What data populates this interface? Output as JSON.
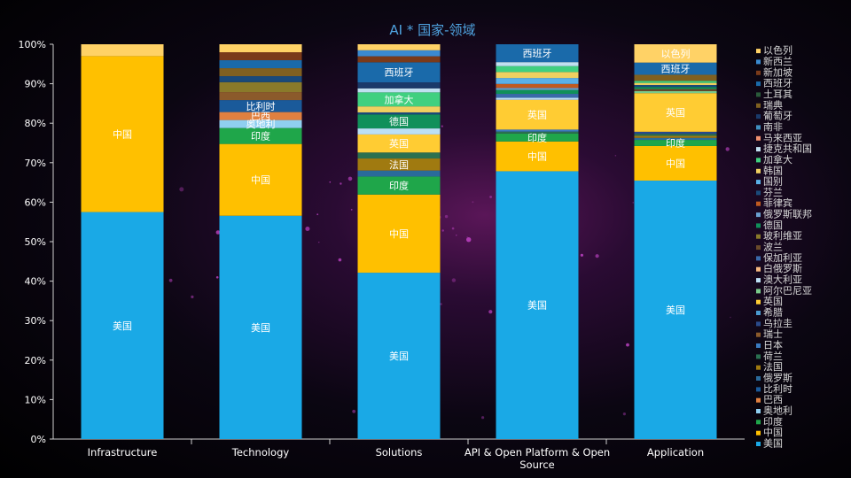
{
  "chart_data": {
    "type": "bar",
    "stacked": true,
    "percent": true,
    "title": "AI * 国家-领域",
    "xlabel": "",
    "ylabel": "",
    "ylim": [
      0,
      100
    ],
    "yticks": [
      "0%",
      "10%",
      "20%",
      "30%",
      "40%",
      "50%",
      "60%",
      "70%",
      "80%",
      "90%",
      "100%"
    ],
    "categories": [
      "Infrastructure",
      "Technology",
      "Solutions",
      "API & Open Platform & Open Source",
      "Application"
    ],
    "category_lines": [
      [
        "Infrastructure"
      ],
      [
        "Technology"
      ],
      [
        "Solutions"
      ],
      [
        "API & Open Platform & Open",
        "Source"
      ],
      [
        "Application"
      ]
    ],
    "legend_position": "right",
    "series": [
      {
        "name": "美国",
        "color": "#1aa9e6",
        "values": [
          57.5,
          56,
          41.5,
          67.5,
          63.5
        ]
      },
      {
        "name": "中国",
        "color": "#ffc000",
        "values": [
          39.5,
          18,
          19.5,
          7.5,
          8.5
        ]
      },
      {
        "name": "印度",
        "color": "#1fa64a",
        "values": [
          0,
          4,
          4.5,
          2,
          1.5
        ]
      },
      {
        "name": "奥地利",
        "color": "#8fcff0",
        "values": [
          0,
          2,
          0,
          0,
          0
        ]
      },
      {
        "name": "巴西",
        "color": "#e08040",
        "values": [
          0,
          2,
          0,
          0,
          0
        ]
      },
      {
        "name": "比利时",
        "color": "#1a5a9a",
        "values": [
          0,
          3,
          0,
          0,
          0
        ]
      },
      {
        "name": "俄罗斯",
        "color": "#2a6a9a",
        "values": [
          0,
          0,
          1.5,
          0,
          0.5
        ]
      },
      {
        "name": "法国",
        "color": "#a07a10",
        "values": [
          0,
          0,
          3,
          0,
          0.5
        ]
      },
      {
        "name": "荷兰",
        "color": "#2a7050",
        "values": [
          0,
          0,
          1.5,
          0.5,
          0.5
        ]
      },
      {
        "name": "日本",
        "color": "#3a7ac0",
        "values": [
          0,
          0,
          0,
          0.5,
          0
        ]
      },
      {
        "name": "瑞士",
        "color": "#8b5a2b",
        "values": [
          0,
          2,
          0,
          0,
          0
        ]
      },
      {
        "name": "乌拉圭",
        "color": "#2a4a8a",
        "values": [
          0,
          0,
          0,
          0,
          0.5
        ]
      },
      {
        "name": "希腊",
        "color": "#4a9ad0",
        "values": [
          0,
          0,
          0,
          0,
          0
        ]
      },
      {
        "name": "英国",
        "color": "#ffcc33",
        "values": [
          0,
          0,
          4.5,
          7.5,
          9.5
        ]
      },
      {
        "name": "阿尔巴尼亚",
        "color": "#7aca8a",
        "values": [
          0,
          0,
          0,
          0,
          0.5
        ]
      },
      {
        "name": "澳大利亚",
        "color": "#bce0f5",
        "values": [
          0,
          0,
          1.5,
          0.5,
          0
        ]
      },
      {
        "name": "白俄罗斯",
        "color": "#f5b880",
        "values": [
          0,
          0,
          0,
          0,
          0
        ]
      },
      {
        "name": "保加利亚",
        "color": "#3a6aaa",
        "values": [
          0,
          0,
          0,
          1,
          0
        ]
      },
      {
        "name": "波兰",
        "color": "#6a4a2a",
        "values": [
          0,
          0,
          0,
          0,
          0.5
        ]
      },
      {
        "name": "玻利维亚",
        "color": "#8a7a2a",
        "values": [
          0,
          2.5,
          0,
          0,
          0
        ]
      },
      {
        "name": "德国",
        "color": "#10905a",
        "values": [
          0,
          0,
          3.5,
          1,
          0.5
        ]
      },
      {
        "name": "俄罗斯联邦",
        "color": "#6aa0d0",
        "values": [
          0,
          0,
          0,
          0.5,
          0
        ]
      },
      {
        "name": "菲律宾",
        "color": "#c05a20",
        "values": [
          0,
          0,
          0,
          1,
          0
        ]
      },
      {
        "name": "芬兰",
        "color": "#1a4a7a",
        "values": [
          0,
          1.5,
          0.5,
          0,
          0.5
        ]
      },
      {
        "name": "国别",
        "color": "#5ab0e8",
        "values": [
          0,
          0,
          0,
          1.5,
          0
        ]
      },
      {
        "name": "韩国",
        "color": "#f0d060",
        "values": [
          0,
          0,
          1.5,
          1.5,
          0.5
        ]
      },
      {
        "name": "加拿大",
        "color": "#40d080",
        "values": [
          0,
          0,
          3.5,
          1.5,
          0.5
        ]
      },
      {
        "name": "捷克共和国",
        "color": "#c0e0f0",
        "values": [
          0,
          0,
          1,
          1,
          0
        ]
      },
      {
        "name": "马来西亚",
        "color": "#f09070",
        "values": [
          0,
          0,
          0,
          0,
          0
        ]
      },
      {
        "name": "南非",
        "color": "#4090c0",
        "values": [
          0,
          0,
          0,
          0,
          0
        ]
      },
      {
        "name": "葡萄牙",
        "color": "#1a3a6a",
        "values": [
          0,
          0,
          1.5,
          0,
          0
        ]
      },
      {
        "name": "瑞典",
        "color": "#806020",
        "values": [
          0,
          2,
          0,
          0,
          1.5
        ]
      },
      {
        "name": "土耳其",
        "color": "#2a5a3a",
        "values": [
          0,
          0,
          0,
          0,
          0
        ]
      },
      {
        "name": "西班牙",
        "color": "#1a6aaa",
        "values": [
          0,
          2,
          5,
          4.5,
          3
        ]
      },
      {
        "name": "新加坡",
        "color": "#7a3a1a",
        "values": [
          0,
          2,
          1.5,
          0,
          0
        ]
      },
      {
        "name": "新西兰",
        "color": "#3a8ad0",
        "values": [
          0,
          0,
          1.5,
          0,
          0
        ]
      },
      {
        "name": "以色列",
        "color": "#ffd266",
        "values": [
          3,
          2,
          1.5,
          0,
          4.5
        ]
      }
    ],
    "segment_labels": [
      {
        "category": 0,
        "series": "美国",
        "text": "美国"
      },
      {
        "category": 0,
        "series": "中国",
        "text": "中国"
      },
      {
        "category": 1,
        "series": "美国",
        "text": "美国"
      },
      {
        "category": 1,
        "series": "中国",
        "text": "中国"
      },
      {
        "category": 1,
        "series": "印度",
        "text": "印度"
      },
      {
        "category": 1,
        "series": "奥地利",
        "text": "奥地利"
      },
      {
        "category": 1,
        "series": "巴西",
        "text": "巴西"
      },
      {
        "category": 1,
        "series": "比利时",
        "text": "比利时"
      },
      {
        "category": 2,
        "series": "美国",
        "text": "美国"
      },
      {
        "category": 2,
        "series": "中国",
        "text": "中国"
      },
      {
        "category": 2,
        "series": "印度",
        "text": "印度"
      },
      {
        "category": 2,
        "series": "法国",
        "text": "法国"
      },
      {
        "category": 2,
        "series": "英国",
        "text": "英国"
      },
      {
        "category": 2,
        "series": "德国",
        "text": "德国"
      },
      {
        "category": 2,
        "series": "加拿大",
        "text": "加拿大"
      },
      {
        "category": 2,
        "series": "西班牙",
        "text": "西班牙"
      },
      {
        "category": 3,
        "series": "美国",
        "text": "美国"
      },
      {
        "category": 3,
        "series": "中国",
        "text": "中国"
      },
      {
        "category": 3,
        "series": "印度",
        "text": "印度"
      },
      {
        "category": 3,
        "series": "英国",
        "text": "英国"
      },
      {
        "category": 3,
        "series": "西班牙",
        "text": "西班牙"
      },
      {
        "category": 4,
        "series": "美国",
        "text": "美国"
      },
      {
        "category": 4,
        "series": "中国",
        "text": "中国"
      },
      {
        "category": 4,
        "series": "印度",
        "text": "印度"
      },
      {
        "category": 4,
        "series": "英国",
        "text": "英国"
      },
      {
        "category": 4,
        "series": "西班牙",
        "text": "西班牙"
      },
      {
        "category": 4,
        "series": "以色列",
        "text": "以色列"
      }
    ]
  }
}
